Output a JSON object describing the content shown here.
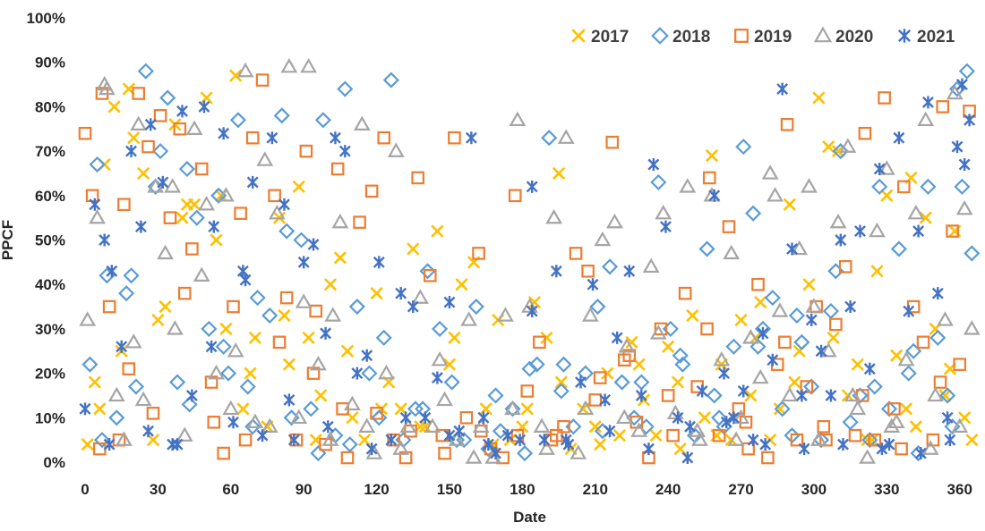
{
  "chart_data": {
    "type": "scatter",
    "title": "",
    "xlabel": "Date",
    "ylabel": "PPCF",
    "xlim": [
      0,
      366
    ],
    "ylim": [
      0,
      1
    ],
    "x_ticks": [
      0,
      30,
      60,
      90,
      120,
      150,
      180,
      210,
      240,
      270,
      300,
      330,
      360
    ],
    "x_tick_labels": [
      "0",
      "30",
      "60",
      "90",
      "120",
      "150",
      "180",
      "210",
      "240",
      "270",
      "300",
      "330",
      "360"
    ],
    "y_ticks": [
      0,
      0.1,
      0.2,
      0.3,
      0.4,
      0.5,
      0.6,
      0.7,
      0.8,
      0.9,
      1.0
    ],
    "y_tick_labels": [
      "0%",
      "10%",
      "20%",
      "30%",
      "40%",
      "50%",
      "60%",
      "70%",
      "80%",
      "90%",
      "100%"
    ],
    "grid": false,
    "legend_position": "top-right",
    "series": [
      {
        "name": "2017",
        "marker": "x",
        "color": "#FFC000",
        "x": [
          1,
          4,
          8,
          12,
          15,
          20,
          24,
          28,
          33,
          37,
          40,
          45,
          50,
          54,
          58,
          62,
          65,
          70,
          75,
          80,
          84,
          88,
          92,
          97,
          101,
          105,
          110,
          115,
          120,
          125,
          130,
          135,
          140,
          145,
          150,
          155,
          160,
          165,
          170,
          175,
          180,
          185,
          190,
          195,
          200,
          205,
          210,
          215,
          220,
          225,
          230,
          235,
          240,
          245,
          250,
          255,
          258,
          262,
          266,
          270,
          274,
          278,
          282,
          286,
          290,
          294,
          298,
          302,
          306,
          310,
          314,
          318,
          322,
          326,
          330,
          334,
          338,
          342,
          346,
          350,
          354,
          358,
          362,
          365,
          6,
          18,
          30,
          42,
          56,
          68,
          82,
          95,
          108,
          122,
          138,
          152,
          168,
          182,
          196,
          212,
          228,
          244,
          260,
          276,
          292,
          308,
          324,
          340,
          356
        ],
        "y": [
          0.04,
          0.18,
          0.67,
          0.8,
          0.25,
          0.73,
          0.65,
          0.05,
          0.35,
          0.76,
          0.55,
          0.58,
          0.82,
          0.5,
          0.3,
          0.87,
          0.12,
          0.28,
          0.08,
          0.55,
          0.22,
          0.62,
          0.28,
          0.15,
          0.4,
          0.46,
          0.1,
          0.05,
          0.38,
          0.18,
          0.12,
          0.48,
          0.08,
          0.52,
          0.22,
          0.4,
          0.45,
          0.12,
          0.32,
          0.05,
          0.08,
          0.36,
          0.28,
          0.65,
          0.03,
          0.12,
          0.08,
          0.2,
          0.06,
          0.27,
          0.14,
          0.06,
          0.26,
          0.03,
          0.33,
          0.1,
          0.69,
          0.22,
          0.05,
          0.32,
          0.15,
          0.36,
          0.05,
          0.12,
          0.58,
          0.25,
          0.4,
          0.82,
          0.71,
          0.7,
          0.15,
          0.22,
          0.05,
          0.43,
          0.6,
          0.24,
          0.12,
          0.08,
          0.55,
          0.3,
          0.15,
          0.52,
          0.1,
          0.05,
          0.12,
          0.84,
          0.32,
          0.58,
          0.6,
          0.2,
          0.33,
          0.05,
          0.25,
          0.12,
          0.08,
          0.28,
          0.04,
          0.12,
          0.18,
          0.04,
          0.22,
          0.18,
          0.06,
          0.28,
          0.18,
          0.28,
          0.05,
          0.64,
          0.21
        ]
      },
      {
        "name": "2018",
        "marker": "diamond",
        "color": "#5B9BD5",
        "x": [
          2,
          5,
          9,
          13,
          17,
          21,
          25,
          29,
          34,
          38,
          42,
          46,
          51,
          55,
          59,
          63,
          67,
          71,
          76,
          81,
          85,
          89,
          93,
          98,
          103,
          107,
          112,
          117,
          121,
          126,
          131,
          136,
          141,
          146,
          151,
          156,
          161,
          166,
          171,
          176,
          181,
          186,
          191,
          196,
          201,
          206,
          211,
          216,
          221,
          226,
          231,
          236,
          241,
          246,
          251,
          256,
          259,
          263,
          267,
          271,
          275,
          279,
          283,
          287,
          291,
          295,
          299,
          303,
          307,
          311,
          315,
          319,
          323,
          327,
          331,
          335,
          339,
          343,
          347,
          351,
          355,
          359,
          361,
          363,
          365,
          7,
          19,
          31,
          43,
          57,
          69,
          83,
          96,
          109,
          123,
          139,
          153,
          169,
          183,
          197,
          213,
          229,
          245,
          261,
          277,
          293,
          309,
          325,
          341,
          357
        ],
        "y": [
          0.22,
          0.67,
          0.42,
          0.1,
          0.38,
          0.17,
          0.88,
          0.62,
          0.82,
          0.18,
          0.66,
          0.55,
          0.3,
          0.6,
          0.2,
          0.77,
          0.17,
          0.37,
          0.33,
          0.78,
          0.1,
          0.5,
          0.12,
          0.77,
          0.06,
          0.84,
          0.35,
          0.2,
          0.1,
          0.86,
          0.05,
          0.12,
          0.43,
          0.3,
          0.18,
          0.05,
          0.35,
          0.03,
          0.07,
          0.12,
          0.02,
          0.22,
          0.73,
          0.16,
          0.08,
          0.2,
          0.35,
          0.44,
          0.18,
          0.1,
          0.08,
          0.63,
          0.3,
          0.22,
          0.06,
          0.48,
          0.15,
          0.08,
          0.26,
          0.71,
          0.56,
          0.3,
          0.37,
          0.12,
          0.06,
          0.27,
          0.17,
          0.05,
          0.34,
          0.7,
          0.09,
          0.15,
          0.05,
          0.62,
          0.12,
          0.48,
          0.2,
          0.02,
          0.62,
          0.28,
          0.15,
          0.84,
          0.62,
          0.88,
          0.47,
          0.05,
          0.42,
          0.7,
          0.13,
          0.26,
          0.08,
          0.52,
          0.02,
          0.04,
          0.28,
          0.12,
          0.05,
          0.15,
          0.21,
          0.22,
          0.07,
          0.18,
          0.24,
          0.1,
          0.26,
          0.33,
          0.43,
          0.17,
          0.25,
          0.08
        ]
      },
      {
        "name": "2019",
        "marker": "square",
        "color": "#ED7D31",
        "x": [
          0,
          3,
          7,
          10,
          14,
          18,
          22,
          26,
          31,
          35,
          39,
          44,
          48,
          53,
          57,
          61,
          64,
          69,
          73,
          78,
          83,
          87,
          91,
          95,
          99,
          104,
          108,
          113,
          118,
          123,
          127,
          132,
          137,
          142,
          147,
          152,
          157,
          162,
          167,
          172,
          177,
          182,
          187,
          192,
          197,
          202,
          207,
          212,
          217,
          222,
          227,
          232,
          237,
          242,
          247,
          252,
          257,
          261,
          265,
          269,
          273,
          277,
          281,
          285,
          289,
          293,
          297,
          301,
          305,
          309,
          313,
          317,
          321,
          325,
          329,
          333,
          337,
          341,
          345,
          349,
          353,
          357,
          360,
          364,
          6,
          16,
          28,
          41,
          52,
          66,
          80,
          94,
          106,
          120,
          134,
          148,
          163,
          178,
          194,
          210,
          224,
          240,
          256,
          272,
          288,
          304,
          320,
          336,
          352
        ],
        "y": [
          0.74,
          0.6,
          0.83,
          0.35,
          0.05,
          0.21,
          0.83,
          0.71,
          0.78,
          0.55,
          0.75,
          0.48,
          0.66,
          0.09,
          0.02,
          0.35,
          0.56,
          0.73,
          0.86,
          0.6,
          0.37,
          0.05,
          0.7,
          0.34,
          0.04,
          0.66,
          0.01,
          0.54,
          0.61,
          0.73,
          0.05,
          0.01,
          0.64,
          0.42,
          0.06,
          0.73,
          0.1,
          0.47,
          0.03,
          0.01,
          0.6,
          0.16,
          0.27,
          0.05,
          0.08,
          0.47,
          0.43,
          0.19,
          0.72,
          0.23,
          0.09,
          0.01,
          0.3,
          0.06,
          0.38,
          0.17,
          0.64,
          0.06,
          0.53,
          0.12,
          0.03,
          0.4,
          0.01,
          0.22,
          0.76,
          0.05,
          0.17,
          0.35,
          0.05,
          0.31,
          0.44,
          0.06,
          0.74,
          0.05,
          0.82,
          0.12,
          0.62,
          0.35,
          0.27,
          0.05,
          0.8,
          0.52,
          0.22,
          0.79,
          0.03,
          0.58,
          0.11,
          0.38,
          0.18,
          0.05,
          0.27,
          0.2,
          0.12,
          0.11,
          0.07,
          0.02,
          0.07,
          0.06,
          0.06,
          0.14,
          0.24,
          0.15,
          0.3,
          0.09,
          0.27,
          0.08,
          0.15,
          0.03,
          0.18
        ]
      },
      {
        "name": "2020",
        "marker": "triangle",
        "color": "#A5A5A5",
        "x": [
          1,
          5,
          9,
          13,
          16,
          20,
          24,
          29,
          33,
          37,
          41,
          45,
          50,
          54,
          58,
          62,
          66,
          70,
          74,
          79,
          84,
          88,
          92,
          96,
          101,
          105,
          110,
          114,
          119,
          124,
          128,
          133,
          138,
          143,
          148,
          153,
          158,
          163,
          168,
          173,
          178,
          183,
          188,
          193,
          198,
          203,
          208,
          213,
          218,
          223,
          228,
          233,
          238,
          243,
          248,
          253,
          258,
          262,
          266,
          270,
          274,
          278,
          282,
          286,
          290,
          294,
          298,
          302,
          306,
          310,
          314,
          318,
          322,
          326,
          330,
          334,
          338,
          342,
          346,
          350,
          354,
          358,
          362,
          365,
          8,
          22,
          36,
          48,
          60,
          76,
          90,
          102,
          116,
          130,
          146,
          160,
          176,
          190,
          206,
          222,
          236,
          252,
          268,
          284,
          300,
          316,
          332,
          348,
          360
        ],
        "y": [
          0.32,
          0.55,
          0.84,
          0.15,
          0.05,
          0.27,
          0.14,
          0.62,
          0.47,
          0.3,
          0.06,
          0.75,
          0.58,
          0.2,
          0.6,
          0.25,
          0.88,
          0.09,
          0.68,
          0.56,
          0.89,
          0.1,
          0.89,
          0.22,
          0.05,
          0.54,
          0.13,
          0.76,
          0.02,
          0.2,
          0.7,
          0.08,
          0.37,
          0.08,
          0.14,
          0.05,
          0.32,
          0.08,
          0.01,
          0.33,
          0.77,
          0.35,
          0.08,
          0.55,
          0.73,
          0.02,
          0.33,
          0.5,
          0.54,
          0.26,
          0.07,
          0.44,
          0.56,
          0.11,
          0.62,
          0.05,
          0.6,
          0.23,
          0.47,
          0.1,
          0.28,
          0.19,
          0.65,
          0.34,
          0.15,
          0.48,
          0.62,
          0.05,
          0.25,
          0.54,
          0.71,
          0.12,
          0.01,
          0.52,
          0.66,
          0.09,
          0.23,
          0.56,
          0.77,
          0.15,
          0.32,
          0.83,
          0.57,
          0.3,
          0.85,
          0.76,
          0.62,
          0.42,
          0.12,
          0.08,
          0.36,
          0.33,
          0.08,
          0.03,
          0.23,
          0.01,
          0.12,
          0.03,
          0.12,
          0.1,
          0.29,
          0.07,
          0.05,
          0.6,
          0.35,
          0.15,
          0.08,
          0.03,
          0.08
        ]
      },
      {
        "name": "2021",
        "marker": "star",
        "color": "#4472C4",
        "x": [
          0,
          4,
          8,
          11,
          15,
          19,
          23,
          27,
          32,
          36,
          40,
          44,
          49,
          53,
          57,
          61,
          65,
          69,
          73,
          77,
          82,
          86,
          90,
          94,
          99,
          103,
          107,
          112,
          116,
          121,
          126,
          130,
          135,
          140,
          145,
          150,
          154,
          159,
          164,
          169,
          174,
          179,
          184,
          189,
          194,
          199,
          204,
          209,
          214,
          219,
          224,
          229,
          234,
          239,
          244,
          249,
          254,
          259,
          263,
          267,
          271,
          275,
          279,
          283,
          287,
          291,
          295,
          299,
          303,
          307,
          311,
          315,
          319,
          323,
          327,
          331,
          335,
          339,
          343,
          347,
          351,
          355,
          359,
          362,
          364,
          10,
          26,
          38,
          52,
          66,
          84,
          100,
          118,
          132,
          150,
          166,
          184,
          198,
          216,
          232,
          248,
          264,
          280,
          296,
          312,
          328,
          344,
          356,
          361
        ],
        "y": [
          0.12,
          0.58,
          0.5,
          0.43,
          0.26,
          0.7,
          0.53,
          0.76,
          0.63,
          0.04,
          0.79,
          0.15,
          0.8,
          0.53,
          0.74,
          0.09,
          0.43,
          0.63,
          0.06,
          0.73,
          0.58,
          0.05,
          0.45,
          0.49,
          0.29,
          0.73,
          0.7,
          0.2,
          0.24,
          0.45,
          0.05,
          0.38,
          0.35,
          0.1,
          0.19,
          0.36,
          0.07,
          0.73,
          0.1,
          0.02,
          0.06,
          0.05,
          0.62,
          0.05,
          0.43,
          0.04,
          0.18,
          0.4,
          0.14,
          0.28,
          0.43,
          0.15,
          0.67,
          0.53,
          0.1,
          0.08,
          0.16,
          0.6,
          0.2,
          0.1,
          0.16,
          0.05,
          0.29,
          0.23,
          0.84,
          0.48,
          0.15,
          0.32,
          0.25,
          0.15,
          0.5,
          0.35,
          0.52,
          0.21,
          0.66,
          0.04,
          0.73,
          0.34,
          0.52,
          0.81,
          0.38,
          0.1,
          0.71,
          0.67,
          0.77,
          0.04,
          0.07,
          0.04,
          0.26,
          0.41,
          0.14,
          0.08,
          0.03,
          0.1,
          0.06,
          0.04,
          0.34,
          0.05,
          0.07,
          0.03,
          0.01,
          0.09,
          0.04,
          0.03,
          0.04,
          0.03,
          0.02,
          0.05,
          0.85
        ]
      }
    ]
  }
}
